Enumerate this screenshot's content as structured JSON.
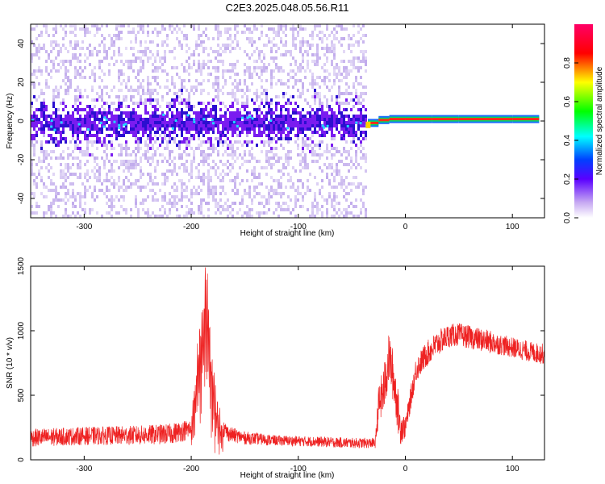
{
  "title": "C2E3.2025.048.05.56.R11",
  "colors": {
    "snr_line": "#ee2222",
    "low": "#b59be8",
    "mid": "#7a1cf0",
    "high": "#2b0fd0"
  },
  "chart_data": [
    {
      "type": "heatmap",
      "xlabel": "Height of straight line (km)",
      "ylabel": "Frequency (Hz)",
      "xlim": [
        -350,
        130
      ],
      "ylim": [
        -50,
        50
      ],
      "xticks": [
        -300,
        -200,
        -100,
        0,
        100
      ],
      "yticks": [
        -40,
        -20,
        0,
        20,
        40
      ],
      "colorbar": {
        "label": "Normalized spectral amplitude",
        "range": [
          0,
          1
        ],
        "ticks": [
          "0.0",
          "0.2",
          "0.4",
          "0.6",
          "0.8"
        ],
        "colormap": "rainbow (white-violet-blue-cyan-green-yellow-red-magenta)"
      },
      "features": {
        "noise_region_x": [
          -350,
          -37
        ],
        "signal_region_x": [
          -37,
          130
        ],
        "signal_frequency_hz": [
          -2,
          0,
          1,
          1,
          1,
          1,
          1,
          1,
          1
        ],
        "signal_frequency_x": [
          -35,
          -25,
          -15,
          0,
          25,
          50,
          75,
          100,
          125
        ]
      },
      "grid": false
    },
    {
      "type": "line",
      "xlabel": "Height of straight line (km)",
      "ylabel": "SNR (10 * v/v)",
      "xlim": [
        -350,
        130
      ],
      "ylim": [
        0,
        1500
      ],
      "xticks": [
        -300,
        -200,
        -100,
        0,
        100
      ],
      "yticks": [
        0,
        500,
        1000,
        1500
      ],
      "series": [
        {
          "x": [
            -350,
            -300,
            -250,
            -220,
            -200,
            -195,
            -190,
            -186,
            -182,
            -178,
            -172,
            -165,
            -150,
            -120,
            -80,
            -50,
            -28,
            -25,
            -20,
            -15,
            -10,
            -5,
            0,
            10,
            20,
            30,
            40,
            50,
            60,
            70,
            80,
            90,
            100,
            110,
            120,
            130
          ],
          "y": [
            170,
            185,
            190,
            200,
            240,
            700,
            1100,
            1450,
            900,
            500,
            260,
            200,
            170,
            150,
            140,
            130,
            130,
            420,
            540,
            800,
            580,
            260,
            250,
            700,
            820,
            900,
            960,
            970,
            950,
            930,
            910,
            890,
            870,
            850,
            830,
            820
          ],
          "noise_amplitude": [
            70,
            70,
            75,
            80,
            80,
            150,
            200,
            200,
            180,
            150,
            80,
            60,
            50,
            40,
            40,
            40,
            40,
            150,
            200,
            200,
            200,
            150,
            80,
            100,
            100,
            100,
            90,
            90,
            90,
            90,
            90,
            80,
            80,
            80,
            80,
            80
          ]
        }
      ],
      "grid": false
    }
  ]
}
